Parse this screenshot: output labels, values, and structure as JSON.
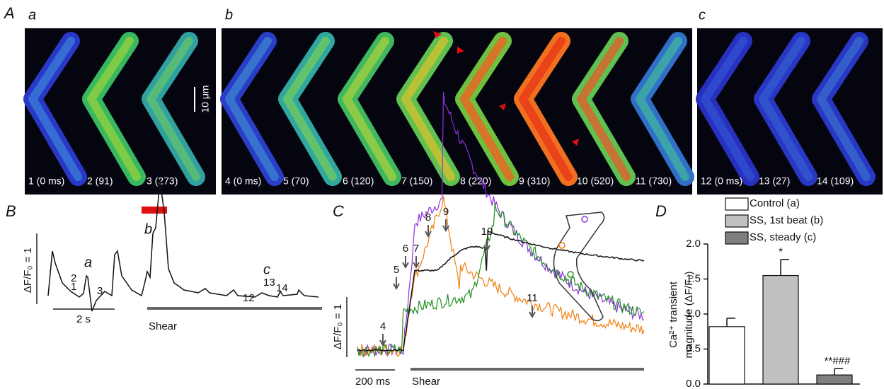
{
  "figure": {
    "A": {
      "label": "A",
      "sub_labels": [
        "a",
        "b",
        "c"
      ],
      "frames": [
        "1 (0 ms)",
        "2 (91)",
        "3 (273)",
        "4 (0 ms)",
        "5 (70)",
        "6 (120)",
        "7 (150)",
        "8 (220)",
        "9 (310)",
        "10 (520)",
        "11 (730)",
        "12 (0 ms)",
        "13 (27)",
        "14 (109)"
      ],
      "scale_bar": "10 μm"
    },
    "B": {
      "label": "B",
      "sub_labels": [
        "a",
        "b",
        "c"
      ],
      "y_scale": "ΔF/F₀ = 1",
      "x_scale": "2 s",
      "shear": "Shear",
      "markers": [
        "1",
        "2",
        "3",
        "12",
        "13",
        "14"
      ]
    },
    "C": {
      "label": "C",
      "y_scale": "ΔF/F₀ = 1",
      "x_scale": "200 ms",
      "shear": "Shear",
      "markers": [
        "4",
        "5",
        "6",
        "7",
        "8",
        "9",
        "10",
        "11"
      ]
    },
    "D": {
      "label": "D"
    }
  },
  "chart_data": {
    "type": "bar",
    "y_label": [
      "Ca²⁺ transient",
      "magnitude (ΔF/F₀)"
    ],
    "categories": [
      null
    ],
    "series": [
      {
        "name": "Control (a)",
        "color": "#ffffff",
        "values": [
          0.82
        ],
        "errors": [
          0.12
        ]
      },
      {
        "name": "SS, 1st beat (b)",
        "color": "#c0c0c0",
        "values": [
          1.55
        ],
        "errors": [
          0.23
        ]
      },
      {
        "name": "SS, steady (c)",
        "color": "#7f7f7f",
        "values": [
          0.13
        ],
        "errors": [
          0.09
        ]
      }
    ],
    "annotations": [
      "",
      "*",
      "**###"
    ],
    "ylim": [
      0,
      2.0
    ],
    "yticks": [
      {
        "value": 0,
        "label": "0.0"
      },
      {
        "value": 0.5,
        "label": "0.5"
      },
      {
        "value": 1,
        "label": "1.0"
      },
      {
        "value": 1.5,
        "label": "1.5"
      },
      {
        "value": 2,
        "label": "2.0"
      }
    ]
  }
}
